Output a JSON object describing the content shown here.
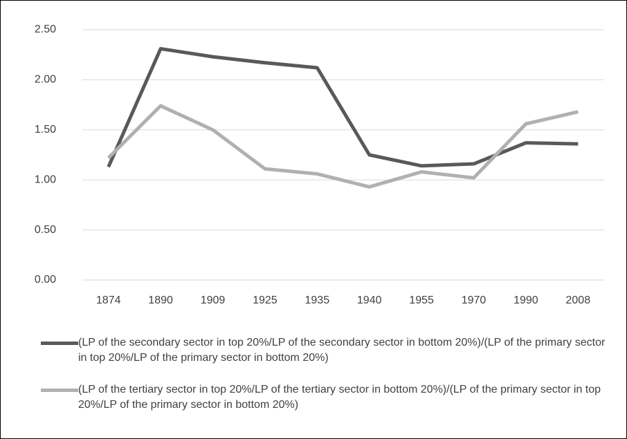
{
  "chart_data": {
    "type": "line",
    "categories": [
      "1874",
      "1890",
      "1909",
      "1925",
      "1935",
      "1940",
      "1955",
      "1970",
      "1990",
      "2008"
    ],
    "series": [
      {
        "name": "(LP of the secondary sector in top 20%/LP of the secondary sector in bottom 20%)/(LP of the primary sector in top 20%/LP of the primary sector in bottom 20%)",
        "color": "#595959",
        "values": [
          1.13,
          2.31,
          2.23,
          2.17,
          2.12,
          1.25,
          1.14,
          1.16,
          1.37,
          1.36
        ]
      },
      {
        "name": "(LP of the tertiary sector in top 20%/LP of the tertiary sector in bottom 20%)/(LP of the primary sector in top 20%/LP of the primary sector in bottom 20%)",
        "color": "#b0b0b0",
        "values": [
          1.22,
          1.74,
          1.5,
          1.11,
          1.06,
          0.93,
          1.08,
          1.02,
          1.56,
          1.68
        ]
      }
    ],
    "ylim": [
      0,
      2.5
    ],
    "yticks": [
      {
        "value": 0,
        "label": "0.00"
      },
      {
        "value": 0.5,
        "label": "0.50"
      },
      {
        "value": 1,
        "label": "1.00"
      },
      {
        "value": 1.5,
        "label": "1.50"
      },
      {
        "value": 2,
        "label": "2.00"
      },
      {
        "value": 2.5,
        "label": "2.50"
      }
    ],
    "grid": true
  }
}
